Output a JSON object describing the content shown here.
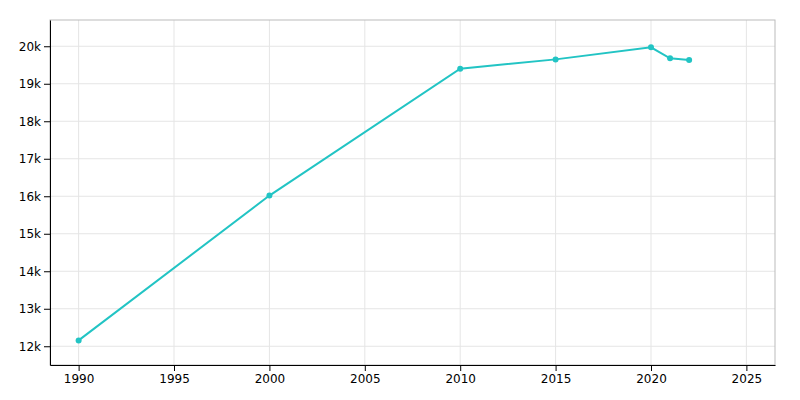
{
  "chart_data": {
    "type": "line",
    "x": [
      1990,
      2000,
      2010,
      2015,
      2020,
      2021,
      2022
    ],
    "values": [
      12156,
      16018,
      19400,
      19650,
      19973,
      19680,
      19634
    ],
    "color": "#22C4C4",
    "marker": "circle",
    "xlim": [
      1988.5,
      2026.5
    ],
    "xticks": [
      1990,
      1995,
      2000,
      2005,
      2010,
      2015,
      2020,
      2025
    ],
    "ylim": [
      11500,
      20700
    ],
    "yticks": [
      {
        "value": 12000,
        "label": "12k"
      },
      {
        "value": 13000,
        "label": "13k"
      },
      {
        "value": 14000,
        "label": "14k"
      },
      {
        "value": 15000,
        "label": "15k"
      },
      {
        "value": 16000,
        "label": "16k"
      },
      {
        "value": 17000,
        "label": "17k"
      },
      {
        "value": 18000,
        "label": "18k"
      },
      {
        "value": 19000,
        "label": "19k"
      },
      {
        "value": 20000,
        "label": "20k"
      }
    ],
    "grid": true
  }
}
